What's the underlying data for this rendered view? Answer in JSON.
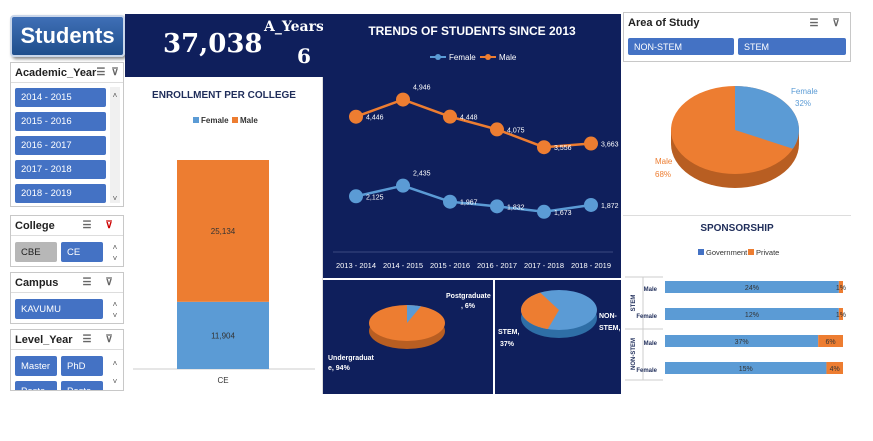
{
  "header": {
    "title": "Students"
  },
  "slicers": {
    "academic_year": {
      "label": "Academic_Year",
      "items": [
        "2014 - 2015",
        "2015 - 2016",
        "2016 - 2017",
        "2017 - 2018",
        "2018 - 2019"
      ]
    },
    "college": {
      "label": "College",
      "items": [
        "CBE",
        "CE"
      ]
    },
    "campus": {
      "label": "Campus",
      "items": [
        "KAVUMU"
      ]
    },
    "level_year": {
      "label": "Level_Year",
      "items": [
        "Master",
        "PhD",
        "Poste",
        "Poste"
      ]
    }
  },
  "kpi": {
    "total": "37,038",
    "years_label": "A_Years",
    "years_value": "6"
  },
  "enrollment": {
    "title": "ENROLLMENT PER COLLEGE",
    "legend": [
      "Female",
      "Male"
    ],
    "category": "CE",
    "female": 11904,
    "male": 25134,
    "female_label": "11,904",
    "male_label": "25,134"
  },
  "trends": {
    "title": "TRENDS OF STUDENTS SINCE 2013",
    "legend": [
      "Female",
      "Male"
    ],
    "categories": [
      "2013 - 2014",
      "2014 - 2015",
      "2015 - 2016",
      "2016 - 2017",
      "2017 - 2018",
      "2018 - 2019"
    ],
    "female": [
      2125,
      2435,
      1967,
      1832,
      1673,
      1872
    ],
    "male": [
      4446,
      4946,
      4448,
      4075,
      3556,
      3663
    ],
    "female_labels": [
      "2,125",
      "2,435",
      "1,967",
      "1,832",
      "1,673",
      "1,872"
    ],
    "male_labels": [
      "4,446",
      "4,946",
      "4,448",
      "4,075",
      "3,556",
      "3,663"
    ]
  },
  "level_pie": {
    "labels": [
      "Postgraduate , 6%",
      "Undergraduat e, 94%"
    ],
    "values": [
      6,
      94
    ]
  },
  "stem_pie": {
    "labels": [
      "NON- STEM, 63%",
      "STEM, 37%"
    ],
    "values": [
      63,
      37
    ]
  },
  "area_of_study": {
    "label": "Area of Study",
    "items": [
      "NON-STEM",
      "STEM"
    ],
    "pie_labels": [
      "Female 32%",
      "Male 68%"
    ],
    "values": [
      32,
      68
    ]
  },
  "sponsorship": {
    "title": "SPONSORSHIP",
    "legend": [
      "Government",
      "Private"
    ],
    "groups": [
      "STEM",
      "NON-STEM"
    ],
    "rows": [
      {
        "group": "STEM",
        "label": "Male",
        "gov": 24,
        "pri": 1,
        "gov_label": "24%",
        "pri_label": "1%"
      },
      {
        "group": "STEM",
        "label": "Female",
        "gov": 12,
        "pri": 1,
        "gov_label": "12%",
        "pri_label": "1%"
      },
      {
        "group": "NON-STEM",
        "label": "Male",
        "gov": 37,
        "pri": 6,
        "gov_label": "37%",
        "pri_label": "6%"
      },
      {
        "group": "NON-STEM",
        "label": "Female",
        "gov": 15,
        "pri": 4,
        "gov_label": "15%",
        "pri_label": "4%"
      }
    ]
  },
  "colors": {
    "blue": "#5b9bd5",
    "orange": "#ed7d31",
    "navy": "#0f1f5c",
    "slicer_blue": "#4472c4"
  },
  "chart_data": [
    {
      "type": "bar",
      "title": "ENROLLMENT PER COLLEGE",
      "categories": [
        "CE"
      ],
      "series": [
        {
          "name": "Female",
          "values": [
            11904
          ]
        },
        {
          "name": "Male",
          "values": [
            25134
          ]
        }
      ]
    },
    {
      "type": "line",
      "title": "TRENDS OF STUDENTS SINCE 2013",
      "categories": [
        "2013 - 2014",
        "2014 - 2015",
        "2015 - 2016",
        "2016 - 2017",
        "2017 - 2018",
        "2018 - 2019"
      ],
      "series": [
        {
          "name": "Female",
          "values": [
            2125,
            2435,
            1967,
            1832,
            1673,
            1872
          ]
        },
        {
          "name": "Male",
          "values": [
            4446,
            4946,
            4448,
            4075,
            3556,
            3663
          ]
        }
      ]
    },
    {
      "type": "pie",
      "categories": [
        "Postgraduate",
        "Undergraduate"
      ],
      "values": [
        6,
        94
      ]
    },
    {
      "type": "pie",
      "categories": [
        "NON-STEM",
        "STEM"
      ],
      "values": [
        63,
        37
      ]
    },
    {
      "type": "pie",
      "categories": [
        "Female",
        "Male"
      ],
      "values": [
        32,
        68
      ]
    },
    {
      "type": "bar",
      "title": "SPONSORSHIP",
      "categories": [
        "STEM Male",
        "STEM Female",
        "NON-STEM Male",
        "NON-STEM Female"
      ],
      "series": [
        {
          "name": "Government",
          "values": [
            24,
            12,
            37,
            15
          ]
        },
        {
          "name": "Private",
          "values": [
            1,
            1,
            6,
            4
          ]
        }
      ]
    }
  ]
}
